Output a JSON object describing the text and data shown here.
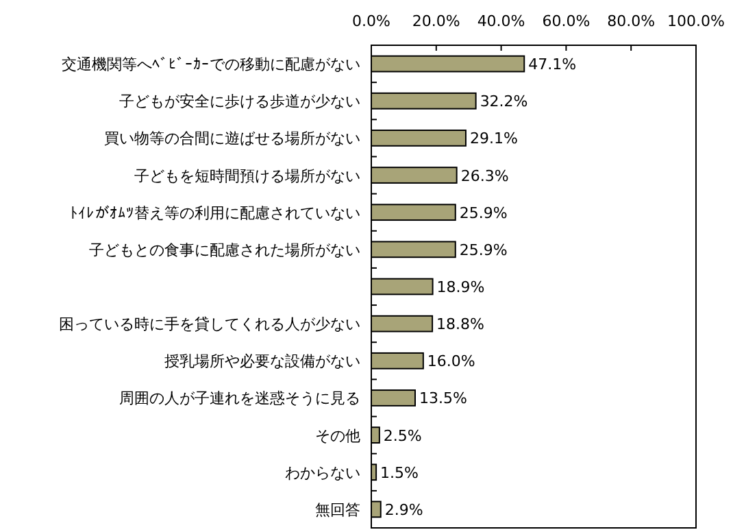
{
  "chart_data": {
    "type": "bar",
    "orientation": "horizontal",
    "categories": [
      "交通機関等へﾍﾞﾋﾞｰｶｰでの移動に配慮がない",
      "子どもが安全に歩ける歩道が少ない",
      "買い物等の合間に遊ばせる場所がない",
      "子どもを短時間預ける場所がない",
      "ﾄｲﾚがｵﾑﾂ替え等の利用に配慮されていない",
      "子どもとの食事に配慮された場所がない",
      null,
      "困っている時に手を貸してくれる人が少ない",
      "授乳場所や必要な設備がない",
      "周囲の人が子連れを迷惑そうに見る",
      "その他",
      "わからない",
      "無回答"
    ],
    "values": [
      47.1,
      32.2,
      29.1,
      26.3,
      25.9,
      25.9,
      18.9,
      18.8,
      16.0,
      13.5,
      2.5,
      1.5,
      2.9
    ],
    "value_labels": [
      "47.1%",
      "32.2%",
      "29.1%",
      "26.3%",
      "25.9%",
      "25.9%",
      "18.9%",
      "18.8%",
      "16.0%",
      "13.5%",
      "2.5%",
      "1.5%",
      "2.9%"
    ],
    "color": "#a8a478",
    "xlim": [
      0,
      100
    ],
    "xticks": [
      {
        "value": 0,
        "label": "0.0%"
      },
      {
        "value": 20,
        "label": "20.0%"
      },
      {
        "value": 40,
        "label": "40.0%"
      },
      {
        "value": 60,
        "label": "60.0%"
      },
      {
        "value": 80,
        "label": "80.0%"
      },
      {
        "value": 100,
        "label": "100.0%"
      }
    ],
    "grid": false
  }
}
